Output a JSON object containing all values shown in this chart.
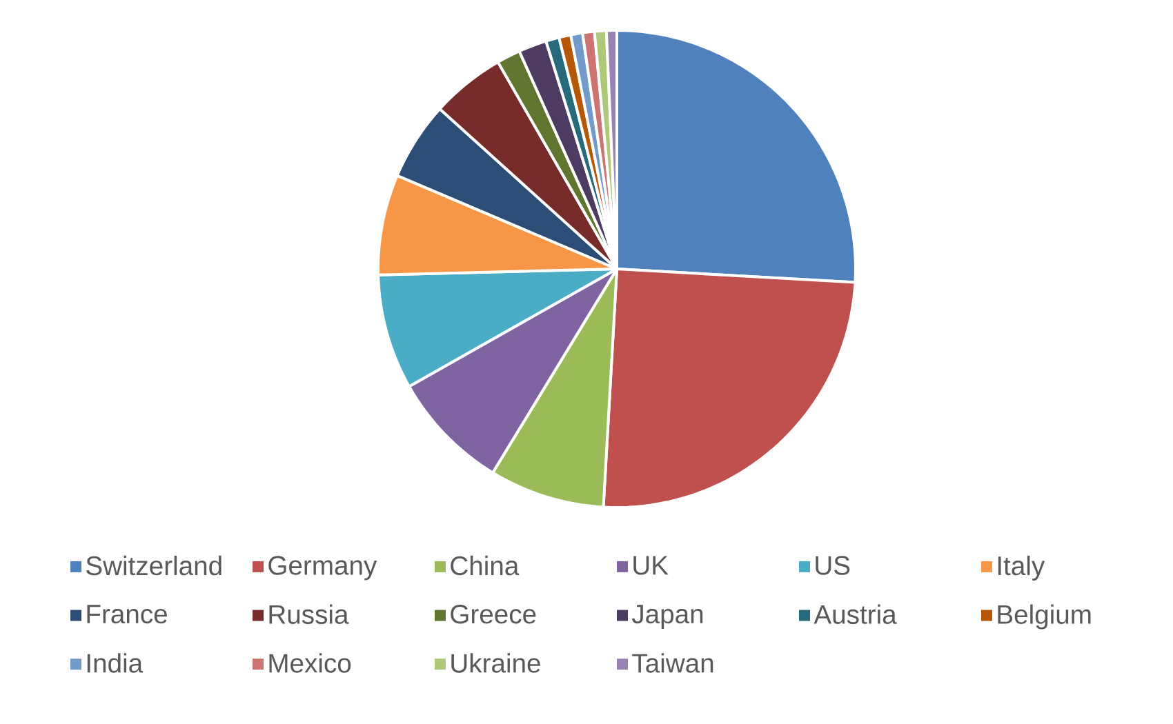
{
  "chart_data": {
    "type": "pie",
    "categories": [
      "Switzerland",
      "Germany",
      "China",
      "UK",
      "US",
      "Italy",
      "France",
      "Russia",
      "Greece",
      "Japan",
      "Austria",
      "Belgium",
      "India",
      "Mexico",
      "Ukraine",
      "Taiwan"
    ],
    "values": [
      25.9,
      25,
      7.8,
      8.1,
      7.8,
      6.8,
      5.3,
      5,
      1.6,
      1.9,
      0.9,
      0.8,
      0.8,
      0.8,
      0.8,
      0.7
    ],
    "colors": [
      "#4f81bd",
      "#c0504d",
      "#9bbb59",
      "#8064a2",
      "#4bacc6",
      "#f79646",
      "#2c4d75",
      "#772c2a",
      "#5f7530",
      "#4d3b62",
      "#276a7c",
      "#b65708",
      "#729aca",
      "#cd7371",
      "#afc97a",
      "#9983b5"
    ],
    "legend": "bottom"
  }
}
